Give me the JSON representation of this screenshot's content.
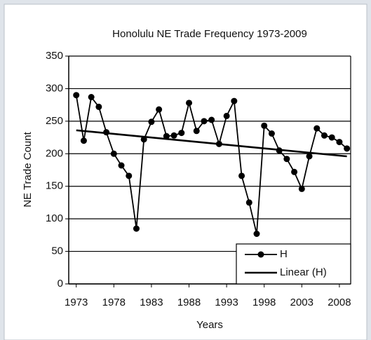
{
  "chart_data": {
    "type": "line",
    "title": "Honolulu NE Trade Frequency 1973-2009",
    "x_label": "Years",
    "y_label": "NE Trade Count",
    "xlim": [
      1972,
      2009.5
    ],
    "xticks": [
      1973,
      1978,
      1983,
      1988,
      1993,
      1998,
      2003,
      2008
    ],
    "ylim": [
      0,
      350
    ],
    "yticks": [
      0,
      50,
      100,
      150,
      200,
      250,
      300,
      350
    ],
    "grid": true,
    "legend": "lower right",
    "series": [
      {
        "name": "H",
        "color": "#000000",
        "marker": true,
        "x": [
          1973,
          1974,
          1975,
          1976,
          1977,
          1978,
          1979,
          1980,
          1981,
          1982,
          1983,
          1984,
          1985,
          1986,
          1987,
          1988,
          1989,
          1990,
          1991,
          1992,
          1993,
          1994,
          1995,
          1996,
          1997,
          1998,
          1999,
          2000,
          2001,
          2002,
          2003,
          2004,
          2005,
          2006,
          2007,
          2008,
          2009
        ],
        "values": [
          290,
          220,
          287,
          272,
          233,
          200,
          182,
          166,
          85,
          222,
          249,
          268,
          227,
          228,
          232,
          278,
          235,
          250,
          252,
          215,
          258,
          281,
          166,
          125,
          77,
          243,
          231,
          205,
          192,
          172,
          146,
          196,
          239,
          228,
          225,
          218,
          208
        ]
      },
      {
        "name": "Linear (H)",
        "color": "#000000",
        "marker": false,
        "x": [
          1973,
          2009
        ],
        "values": [
          236,
          196
        ]
      }
    ]
  }
}
